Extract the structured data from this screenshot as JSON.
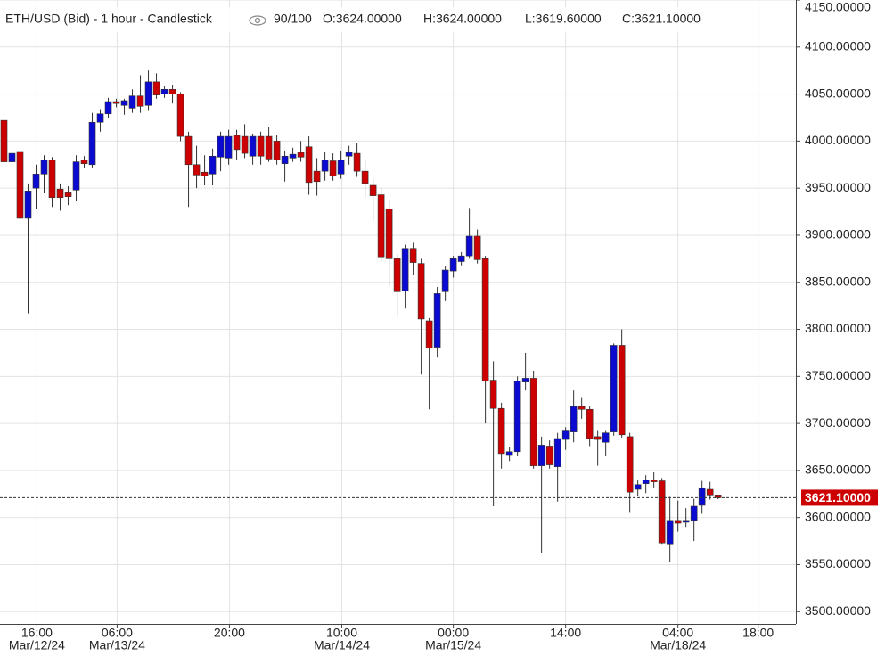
{
  "chart_data": {
    "type": "candlestick",
    "title": "ETH/USD (Bid) - 1 hour - Candlestick",
    "counter": "90/100",
    "ohlc_labels": [
      "O:3624.00000",
      "H:3624.00000",
      "L:3619.60000",
      "C:3621.10000"
    ],
    "up_color": "#0a0ad0",
    "down_color": "#cc0000",
    "open": [
      4022,
      3978,
      3989,
      3918,
      3950,
      3965,
      3980,
      3949,
      3946,
      3948,
      3980,
      3975,
      4020,
      4029,
      4042,
      4038,
      4035,
      4048,
      4038,
      4063,
      4050,
      4055,
      4050,
      4005,
      3975,
      3967,
      3965,
      3983,
      3982,
      4006,
      4005,
      3984,
      4005,
      4005,
      4000,
      3976,
      3982,
      3988,
      3994,
      3968,
      3968,
      3979,
      3965,
      3984,
      3987,
      3968,
      3953,
      3943,
      3928,
      3875,
      3841,
      3886,
      3870,
      3809,
      3781,
      3840,
      3862,
      3872,
      3878,
      3899,
      3875,
      3746,
      3716,
      3666,
      3670,
      3744,
      3748,
      3655,
      3676,
      3654,
      3683,
      3691,
      3718,
      3715,
      3686,
      3680,
      3691,
      3783,
      3686,
      3630,
      3636,
      3640,
      3639,
      3572,
      3597,
      3595,
      3597,
      3613,
      3630,
      3624
    ],
    "high": [
      4051,
      3998,
      4003,
      3955,
      3975,
      3985,
      3983,
      3955,
      3952,
      3985,
      3984,
      4030,
      4034,
      4046,
      4045,
      4045,
      4055,
      4070,
      4075,
      4072,
      4058,
      4060,
      4052,
      4010,
      3995,
      3985,
      3992,
      4010,
      4012,
      4012,
      4018,
      4008,
      4010,
      4015,
      4006,
      3990,
      3993,
      4000,
      4005,
      3982,
      3988,
      3987,
      3990,
      3995,
      3998,
      3980,
      3960,
      3950,
      3938,
      3880,
      3890,
      3892,
      3875,
      3812,
      3845,
      3867,
      3878,
      3882,
      3929,
      3906,
      3878,
      3766,
      3722,
      3675,
      3750,
      3775,
      3756,
      3686,
      3682,
      3690,
      3696,
      3735,
      3728,
      3718,
      3692,
      3692,
      3785,
      3800,
      3690,
      3640,
      3645,
      3648,
      3642,
      3622,
      3618,
      3610,
      3620,
      3639,
      3638,
      3624
    ],
    "low": [
      3970,
      3937,
      3883,
      3817,
      3928,
      3945,
      3930,
      3926,
      3932,
      3936,
      3972,
      3972,
      4010,
      4025,
      4036,
      4028,
      4030,
      4030,
      4033,
      4045,
      4046,
      4040,
      4000,
      3930,
      3950,
      3953,
      3953,
      3968,
      3975,
      3980,
      3982,
      3975,
      3975,
      3978,
      3975,
      3957,
      3978,
      3978,
      3943,
      3942,
      3958,
      3958,
      3960,
      3975,
      3962,
      3940,
      3915,
      3872,
      3846,
      3815,
      3822,
      3858,
      3752,
      3715,
      3770,
      3830,
      3855,
      3868,
      3875,
      3870,
      3700,
      3612,
      3652,
      3660,
      3665,
      3735,
      3652,
      3562,
      3652,
      3617,
      3672,
      3680,
      3705,
      3676,
      3655,
      3665,
      3687,
      3685,
      3605,
      3623,
      3626,
      3632,
      3572,
      3553,
      3585,
      3590,
      3575,
      3604,
      3619,
      3619.6
    ],
    "close": [
      3978,
      3987,
      3918,
      3947,
      3965,
      3980,
      3940,
      3940,
      3941,
      3978,
      3976,
      4020,
      4029,
      4042,
      4040,
      4043,
      4048,
      4037,
      4063,
      4049,
      4055,
      4050,
      4005,
      3975,
      3964,
      3963,
      3984,
      4005,
      4005,
      3991,
      3987,
      4005,
      3984,
      3981,
      3980,
      3984,
      3986,
      3983,
      3956,
      3957,
      3980,
      3963,
      3980,
      3988,
      3968,
      3955,
      3942,
      3877,
      3875,
      3840,
      3886,
      3871,
      3811,
      3780,
      3838,
      3863,
      3875,
      3878,
      3899,
      3874,
      3745,
      3716,
      3668,
      3670,
      3745,
      3748,
      3655,
      3677,
      3656,
      3684,
      3692,
      3718,
      3715,
      3684,
      3683,
      3690,
      3783,
      3688,
      3627,
      3635,
      3640,
      3638,
      3573,
      3597,
      3594,
      3597,
      3612,
      3631,
      3624,
      3621.1
    ],
    "xlim": [
      -0.5,
      98.7
    ],
    "xticks": [
      {
        "value": 4.1,
        "label": "16:00",
        "date": "Mar/12/24"
      },
      {
        "value": 14.1,
        "label": "06:00",
        "date": "Mar/13/24"
      },
      {
        "value": 28.1,
        "label": "20:00"
      },
      {
        "value": 42.1,
        "label": "10:00",
        "date": "Mar/14/24"
      },
      {
        "value": 56,
        "label": "00:00",
        "date": "Mar/15/24"
      },
      {
        "value": 70,
        "label": "14:00"
      },
      {
        "value": 84,
        "label": "04:00",
        "date": "Mar/18/24"
      },
      {
        "value": 94,
        "label": "18:00"
      }
    ],
    "ylim": [
      3487,
      4150
    ],
    "yticks": [
      {
        "value": 4150,
        "label": "4150.00000"
      },
      {
        "value": 4100,
        "label": "4100.00000"
      },
      {
        "value": 4050,
        "label": "4050.00000"
      },
      {
        "value": 4000,
        "label": "4000.00000"
      },
      {
        "value": 3950,
        "label": "3950.00000"
      },
      {
        "value": 3900,
        "label": "3900.00000"
      },
      {
        "value": 3850,
        "label": "3850.00000"
      },
      {
        "value": 3800,
        "label": "3800.00000"
      },
      {
        "value": 3750,
        "label": "3750.00000"
      },
      {
        "value": 3700,
        "label": "3700.00000"
      },
      {
        "value": 3650,
        "label": "3650.00000"
      },
      {
        "value": 3600,
        "label": "3600.00000"
      },
      {
        "value": 3550,
        "label": "3550.00000"
      },
      {
        "value": 3500,
        "label": "3500.00000"
      }
    ],
    "last_price": {
      "value": 3621.1,
      "label": "3621.10000"
    },
    "grid": true
  }
}
